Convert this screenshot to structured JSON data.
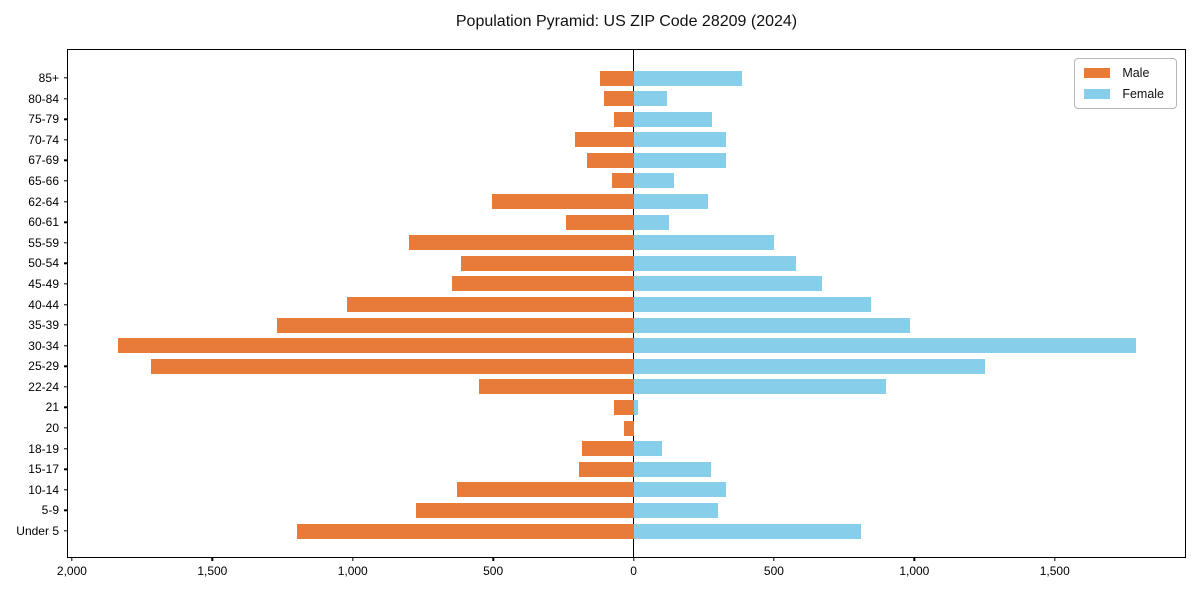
{
  "chart_data": {
    "type": "bar",
    "subtype": "population-pyramid",
    "orientation": "horizontal",
    "title": "Population Pyramid: US ZIP Code 28209 (2024)",
    "xlabel": "",
    "ylabel": "",
    "categories": [
      "85+",
      "80-84",
      "75-79",
      "70-74",
      "67-69",
      "65-66",
      "62-64",
      "60-61",
      "55-59",
      "50-54",
      "45-49",
      "40-44",
      "35-39",
      "30-34",
      "25-29",
      "22-24",
      "21",
      "20",
      "18-19",
      "15-17",
      "10-14",
      "5-9",
      "Under 5"
    ],
    "series": [
      {
        "name": "Male",
        "side": "left",
        "color": "#e87a3a",
        "values": [
          120,
          105,
          70,
          210,
          165,
          75,
          505,
          240,
          800,
          615,
          645,
          1020,
          1270,
          1835,
          1720,
          550,
          70,
          35,
          185,
          195,
          630,
          775,
          1200
        ]
      },
      {
        "name": "Female",
        "side": "right",
        "color": "#87ceeb",
        "values": [
          385,
          120,
          280,
          330,
          330,
          145,
          265,
          125,
          500,
          580,
          670,
          845,
          985,
          1790,
          1250,
          900,
          15,
          0,
          100,
          275,
          330,
          300,
          810
        ]
      }
    ],
    "xlim": [
      -2014,
      1971
    ],
    "x_ticks": [
      {
        "value": -2000,
        "label": "2,000"
      },
      {
        "value": -1500,
        "label": "1,500"
      },
      {
        "value": -1000,
        "label": "1,000"
      },
      {
        "value": -500,
        "label": "500"
      },
      {
        "value": 0,
        "label": "0"
      },
      {
        "value": 500,
        "label": "500"
      },
      {
        "value": 1000,
        "label": "1,000"
      },
      {
        "value": 1500,
        "label": "1,500"
      }
    ],
    "grid": false,
    "legend_position": "top-right",
    "axis_color": "#000000",
    "background_color": "#ffffff"
  }
}
